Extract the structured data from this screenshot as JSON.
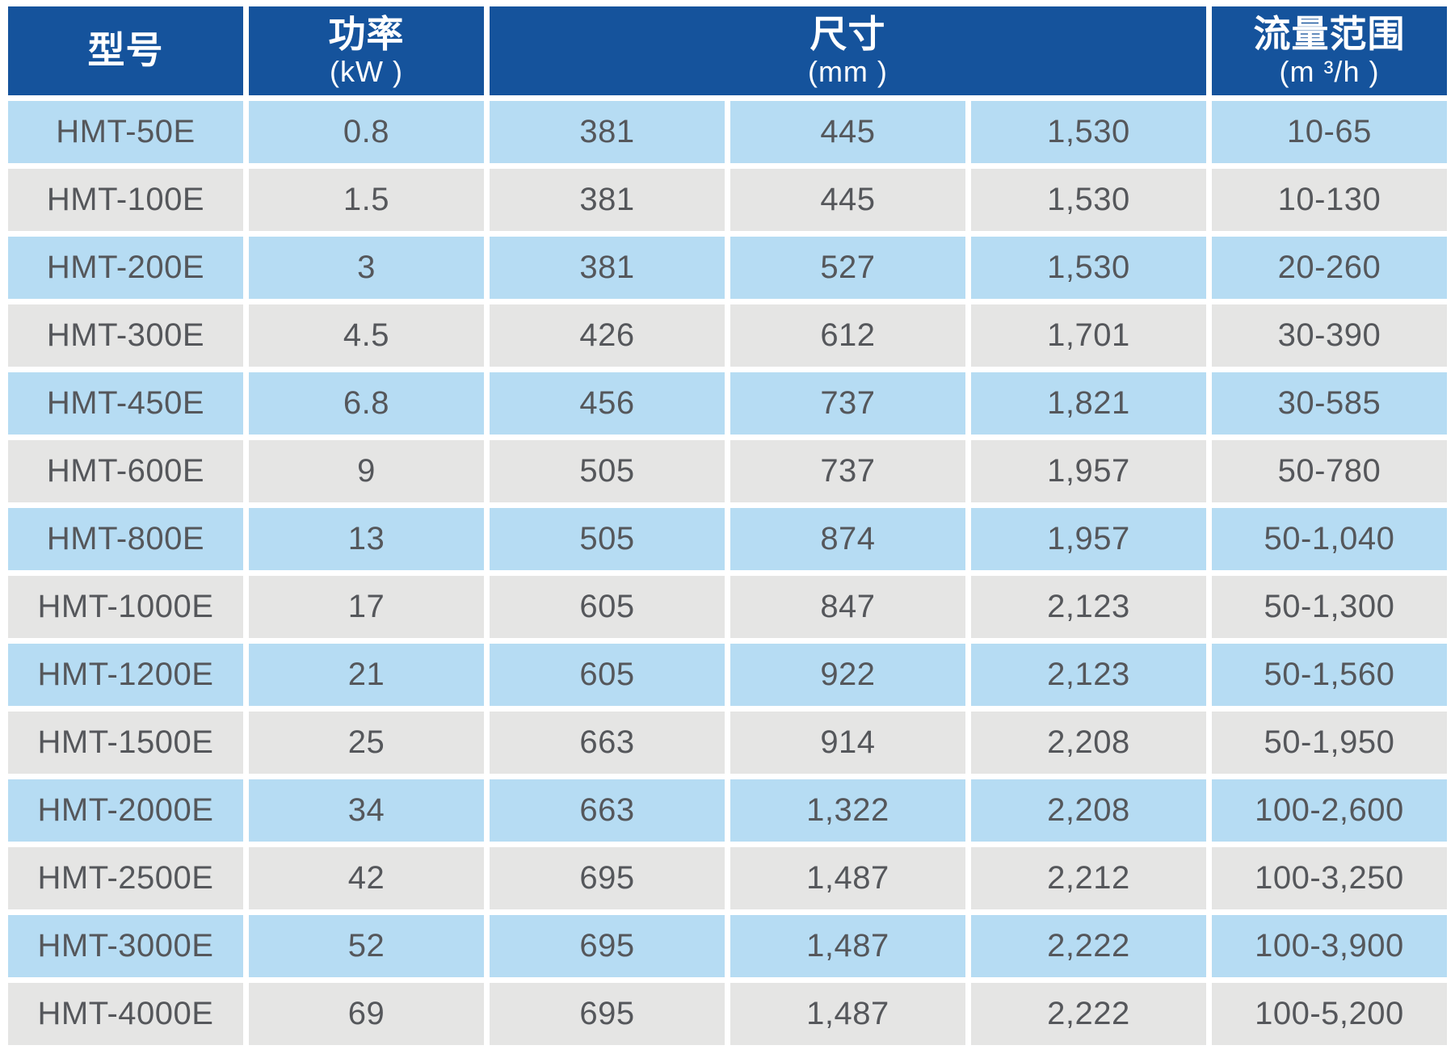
{
  "table": {
    "columns": {
      "model": {
        "title": "型号"
      },
      "power": {
        "title": "功率",
        "unit": "(kW )"
      },
      "size": {
        "title": "尺寸",
        "unit": "(mm )",
        "span": 3
      },
      "flow": {
        "title": "流量范围",
        "unit": "(m ³/h )"
      }
    },
    "rows": [
      [
        "HMT-50E",
        "0.8",
        "381",
        "445",
        "1,530",
        "10-65"
      ],
      [
        "HMT-100E",
        "1.5",
        "381",
        "445",
        "1,530",
        "10-130"
      ],
      [
        "HMT-200E",
        "3",
        "381",
        "527",
        "1,530",
        "20-260"
      ],
      [
        "HMT-300E",
        "4.5",
        "426",
        "612",
        "1,701",
        "30-390"
      ],
      [
        "HMT-450E",
        "6.8",
        "456",
        "737",
        "1,821",
        "30-585"
      ],
      [
        "HMT-600E",
        "9",
        "505",
        "737",
        "1,957",
        "50-780"
      ],
      [
        "HMT-800E",
        "13",
        "505",
        "874",
        "1,957",
        "50-1,040"
      ],
      [
        "HMT-1000E",
        "17",
        "605",
        "847",
        "2,123",
        "50-1,300"
      ],
      [
        "HMT-1200E",
        "21",
        "605",
        "922",
        "2,123",
        "50-1,560"
      ],
      [
        "HMT-1500E",
        "25",
        "663",
        "914",
        "2,208",
        "50-1,950"
      ],
      [
        "HMT-2000E",
        "34",
        "663",
        "1,322",
        "2,208",
        "100-2,600"
      ],
      [
        "HMT-2500E",
        "42",
        "695",
        "1,487",
        "2,212",
        "100-3,250"
      ],
      [
        "HMT-3000E",
        "52",
        "695",
        "1,487",
        "2,222",
        "100-3,900"
      ],
      [
        "HMT-4000E",
        "69",
        "695",
        "1,487",
        "2,222",
        "100-5,200"
      ]
    ]
  },
  "colors": {
    "header_bg": "#15539C",
    "header_text": "#FFFFFF",
    "row_blue": "#B6DCF3",
    "row_gray": "#E5E5E4",
    "cell_text": "#55575B"
  }
}
